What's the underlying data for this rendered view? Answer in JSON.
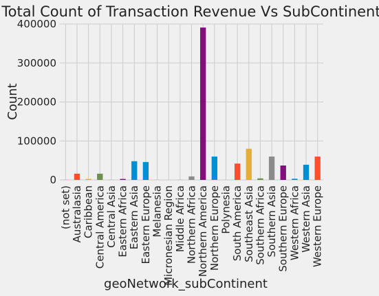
{
  "chart_data": {
    "type": "bar",
    "title": "Total Count of Transaction Revenue Vs SubContinent",
    "xlabel": "geoNetwork_subContinent",
    "ylabel": "Count",
    "ylim": [
      0,
      400000
    ],
    "yticks": [
      "0",
      "100000",
      "200000",
      "300000",
      "400000"
    ],
    "yticks_values": [
      0,
      100000,
      200000,
      300000,
      400000
    ],
    "grid": true,
    "categories": [
      "(not set)",
      "Australasia",
      "Caribbean",
      "Central America",
      "Central Asia",
      "Eastern Africa",
      "Eastern Asia",
      "Eastern Europe",
      "Melanesia",
      "Micronesian Region",
      "Middle Africa",
      "Northern Africa",
      "Northern America",
      "Northern Europe",
      "Polynesia",
      "South America",
      "Southeast Asia",
      "Southern Africa",
      "Southern Asia",
      "Southern Europe",
      "Western Africa",
      "Western Asia",
      "Western Europe"
    ],
    "values": [
      200,
      16000,
      2500,
      16000,
      300,
      2500,
      48000,
      46000,
      150,
      50,
      200,
      9000,
      391000,
      60000,
      100,
      42000,
      80000,
      4000,
      60000,
      37000,
      3000,
      39000,
      60000
    ],
    "bar_colors": [
      "#008fd5",
      "#fc4f30",
      "#e5ae38",
      "#6d904f",
      "#8b8b8b",
      "#810f7c",
      "#008fd5",
      "#008fd5",
      "#fc4f30",
      "#e5ae38",
      "#6d904f",
      "#8b8b8b",
      "#810f7c",
      "#008fd5",
      "#fc4f30",
      "#fc4f30",
      "#e5ae38",
      "#6d904f",
      "#8b8b8b",
      "#810f7c",
      "#008fd5",
      "#008fd5",
      "#fc4f30"
    ]
  }
}
